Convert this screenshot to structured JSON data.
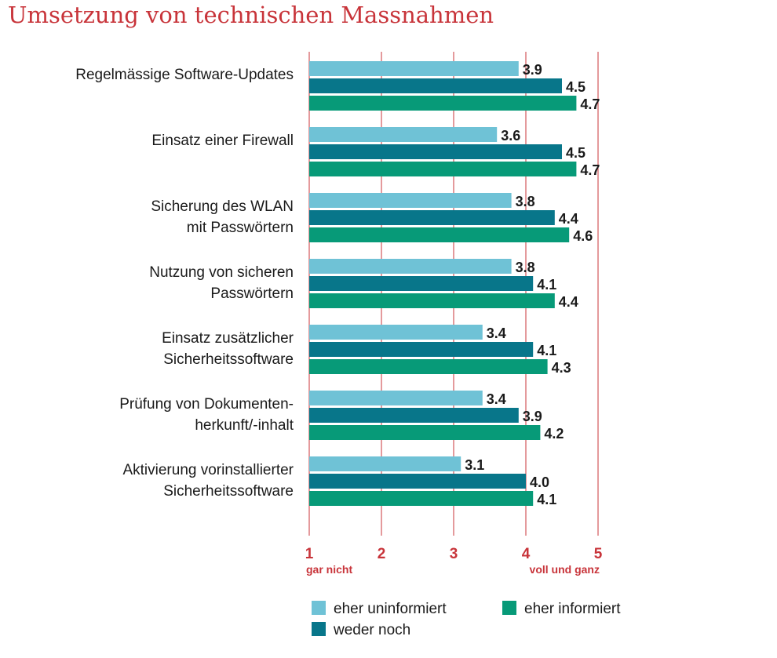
{
  "title": "Umsetzung von technischen Massnahmen",
  "colors": {
    "accent": "#c8343a",
    "series": [
      "#6fc2d6",
      "#08768a",
      "#079a78"
    ]
  },
  "chart_data": {
    "type": "bar",
    "orientation": "horizontal",
    "categories": [
      [
        "Regelmässige Software-Updates"
      ],
      [
        "Einsatz einer Firewall"
      ],
      [
        "Sicherung des WLAN",
        "mit Passwörtern"
      ],
      [
        "Nutzung von sicheren",
        "Passwörtern"
      ],
      [
        "Einsatz zusätzlicher",
        "Sicherheitssoftware"
      ],
      [
        "Prüfung von Dokumenten-",
        "herkunft/-inhalt"
      ],
      [
        "Aktivierung vorinstallierter",
        "Sicherheitssoftware"
      ]
    ],
    "series": [
      {
        "name": "eher uninformiert",
        "values": [
          3.9,
          3.6,
          3.8,
          3.8,
          3.4,
          3.4,
          3.1
        ]
      },
      {
        "name": "weder noch",
        "values": [
          4.5,
          4.5,
          4.4,
          4.1,
          4.1,
          3.9,
          4.0
        ]
      },
      {
        "name": "eher informiert",
        "values": [
          4.7,
          4.7,
          4.6,
          4.4,
          4.3,
          4.2,
          4.1
        ]
      }
    ],
    "xlim": [
      1,
      5
    ],
    "xticks": [
      "1",
      "2",
      "3",
      "4",
      "5"
    ],
    "x_anchor_low": "gar nicht",
    "x_anchor_high": "voll und ganz",
    "value_labels": [
      [
        "3.9",
        "3.6",
        "3.8",
        "3.8",
        "3.4",
        "3.4",
        "3.1"
      ],
      [
        "4.5",
        "4.5",
        "4.4",
        "4.1",
        "4.1",
        "3.9",
        "4.0"
      ],
      [
        "4.7",
        "4.7",
        "4.6",
        "4.4",
        "4.3",
        "4.2",
        "4.1"
      ]
    ],
    "grid": true,
    "legend_position": "bottom"
  }
}
